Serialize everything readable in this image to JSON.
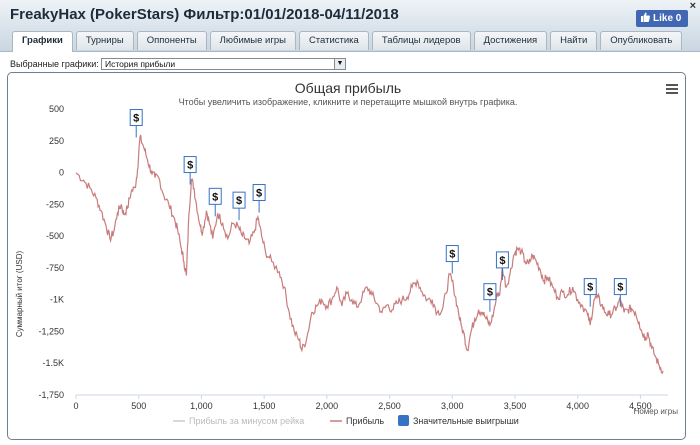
{
  "window": {
    "title": "FreakyHax (PokerStars) Фильтр:01/01/2018-04/11/2018",
    "close_glyph": "×",
    "like_label": "Like 0"
  },
  "tabs": [
    {
      "label": "Графики",
      "active": true
    },
    {
      "label": "Турниры"
    },
    {
      "label": "Оппоненты"
    },
    {
      "label": "Любимые игры"
    },
    {
      "label": "Статистика"
    },
    {
      "label": "Таблицы лидеров"
    },
    {
      "label": "Достижения"
    },
    {
      "label": "Найти"
    },
    {
      "label": "Опубликовать"
    }
  ],
  "filter": {
    "label": "Выбранные графики:",
    "selected": "История прибыли"
  },
  "chart_data": {
    "type": "line",
    "title": "Общая прибыль",
    "subtitle": "Чтобы увеличить изображение, кликните и перетащите мышкой внутрь графика.",
    "xlabel": "Номер игры",
    "ylabel": "Суммарный итог (USD)",
    "xlim": [
      0,
      4720
    ],
    "ylim": [
      -1750,
      500
    ],
    "x_ticks": [
      0,
      500,
      1000,
      1500,
      2000,
      2500,
      3000,
      3500,
      4000,
      4500
    ],
    "x_tick_labels": [
      "0",
      "500",
      "1,000",
      "1,500",
      "2,000",
      "2,500",
      "3,000",
      "3,500",
      "4,000",
      "4,500"
    ],
    "y_ticks": [
      500,
      250,
      0,
      -250,
      -500,
      -750,
      -1000,
      -1250,
      -1500,
      -1750
    ],
    "y_tick_labels": [
      "500",
      "250",
      "0",
      "-250",
      "-500",
      "-750",
      "-1K",
      "-1,250",
      "-1.5K",
      "-1,750"
    ],
    "series": [
      {
        "name": "Прибыль",
        "color": "#c97c7c",
        "points": [
          [
            0,
            0
          ],
          [
            60,
            -60
          ],
          [
            110,
            -120
          ],
          [
            160,
            -200
          ],
          [
            200,
            -300
          ],
          [
            240,
            -420
          ],
          [
            270,
            -520
          ],
          [
            300,
            -470
          ],
          [
            330,
            -320
          ],
          [
            360,
            -250
          ],
          [
            380,
            -330
          ],
          [
            410,
            -280
          ],
          [
            440,
            -150
          ],
          [
            470,
            -120
          ],
          [
            490,
            20
          ],
          [
            510,
            280
          ],
          [
            540,
            200
          ],
          [
            570,
            100
          ],
          [
            600,
            10
          ],
          [
            630,
            -40
          ],
          [
            660,
            -40
          ],
          [
            700,
            -180
          ],
          [
            740,
            -250
          ],
          [
            780,
            -350
          ],
          [
            810,
            -450
          ],
          [
            840,
            -600
          ],
          [
            860,
            -700
          ],
          [
            880,
            -810
          ],
          [
            900,
            -330
          ],
          [
            920,
            -50
          ],
          [
            940,
            -120
          ],
          [
            960,
            -250
          ],
          [
            990,
            -420
          ],
          [
            1010,
            -470
          ],
          [
            1040,
            -300
          ],
          [
            1060,
            -380
          ],
          [
            1090,
            -520
          ],
          [
            1130,
            -320
          ],
          [
            1170,
            -400
          ],
          [
            1210,
            -520
          ],
          [
            1250,
            -400
          ],
          [
            1290,
            -420
          ],
          [
            1320,
            -490
          ],
          [
            1350,
            -520
          ],
          [
            1380,
            -560
          ],
          [
            1420,
            -470
          ],
          [
            1450,
            -350
          ],
          [
            1480,
            -500
          ],
          [
            1510,
            -620
          ],
          [
            1560,
            -700
          ],
          [
            1620,
            -780
          ],
          [
            1660,
            -900
          ],
          [
            1700,
            -1100
          ],
          [
            1740,
            -1250
          ],
          [
            1780,
            -1320
          ],
          [
            1800,
            -1400
          ],
          [
            1840,
            -1300
          ],
          [
            1880,
            -1100
          ],
          [
            1920,
            -1050
          ],
          [
            1960,
            -1000
          ],
          [
            2000,
            -1050
          ],
          [
            2040,
            -1000
          ],
          [
            2080,
            -900
          ],
          [
            2120,
            -1050
          ],
          [
            2160,
            -950
          ],
          [
            2200,
            -1000
          ],
          [
            2240,
            -1060
          ],
          [
            2280,
            -980
          ],
          [
            2320,
            -900
          ],
          [
            2360,
            -960
          ],
          [
            2400,
            -1030
          ],
          [
            2440,
            -1100
          ],
          [
            2480,
            -1040
          ],
          [
            2520,
            -1080
          ],
          [
            2560,
            -1030
          ],
          [
            2600,
            -1000
          ],
          [
            2640,
            -980
          ],
          [
            2680,
            -900
          ],
          [
            2720,
            -850
          ],
          [
            2760,
            -940
          ],
          [
            2800,
            -1000
          ],
          [
            2840,
            -1000
          ],
          [
            2880,
            -1100
          ],
          [
            2920,
            -1080
          ],
          [
            2950,
            -950
          ],
          [
            2980,
            -800
          ],
          [
            3010,
            -900
          ],
          [
            3040,
            -1050
          ],
          [
            3070,
            -1200
          ],
          [
            3100,
            -1300
          ],
          [
            3120,
            -1400
          ],
          [
            3150,
            -1250
          ],
          [
            3180,
            -1150
          ],
          [
            3210,
            -1080
          ],
          [
            3240,
            -1100
          ],
          [
            3270,
            -1150
          ],
          [
            3300,
            -1200
          ],
          [
            3330,
            -1100
          ],
          [
            3360,
            -950
          ],
          [
            3380,
            -950
          ],
          [
            3400,
            -750
          ],
          [
            3430,
            -900
          ],
          [
            3460,
            -800
          ],
          [
            3490,
            -650
          ],
          [
            3520,
            -600
          ],
          [
            3550,
            -620
          ],
          [
            3580,
            -700
          ],
          [
            3610,
            -720
          ],
          [
            3640,
            -650
          ],
          [
            3670,
            -700
          ],
          [
            3700,
            -760
          ],
          [
            3730,
            -850
          ],
          [
            3760,
            -820
          ],
          [
            3800,
            -900
          ],
          [
            3840,
            -980
          ],
          [
            3880,
            -940
          ],
          [
            3920,
            -960
          ],
          [
            3960,
            -900
          ],
          [
            4000,
            -1000
          ],
          [
            4040,
            -1050
          ],
          [
            4080,
            -1120
          ],
          [
            4100,
            -1200
          ],
          [
            4130,
            -1000
          ],
          [
            4160,
            -980
          ],
          [
            4190,
            -1040
          ],
          [
            4220,
            -1100
          ],
          [
            4250,
            -1120
          ],
          [
            4280,
            -1100
          ],
          [
            4310,
            -1060
          ],
          [
            4340,
            -1000
          ],
          [
            4370,
            -1100
          ],
          [
            4400,
            -1080
          ],
          [
            4430,
            -1070
          ],
          [
            4460,
            -1100
          ],
          [
            4490,
            -1180
          ],
          [
            4510,
            -1250
          ],
          [
            4540,
            -1300
          ],
          [
            4560,
            -1260
          ],
          [
            4590,
            -1380
          ],
          [
            4620,
            -1450
          ],
          [
            4650,
            -1520
          ],
          [
            4680,
            -1560
          ]
        ]
      },
      {
        "name": "Прибыль за минусом рейка",
        "color": "#cccccc",
        "points": []
      }
    ],
    "big_wins_label": "Значительные выигрыши",
    "big_wins_color": "#3573c4",
    "big_wins": [
      {
        "x": 480,
        "y": 370,
        "label": "$"
      },
      {
        "x": 910,
        "y": 0,
        "label": "$"
      },
      {
        "x": 1110,
        "y": -250,
        "label": "$"
      },
      {
        "x": 1300,
        "y": -280,
        "label": "$"
      },
      {
        "x": 1460,
        "y": -220,
        "label": "$"
      },
      {
        "x": 3000,
        "y": -700,
        "label": "$"
      },
      {
        "x": 3300,
        "y": -1000,
        "label": "$"
      },
      {
        "x": 3400,
        "y": -750,
        "label": "$"
      },
      {
        "x": 4100,
        "y": -960,
        "label": "$"
      },
      {
        "x": 4340,
        "y": -960,
        "label": "$"
      }
    ],
    "grid": false,
    "legend_position": "bottom"
  }
}
